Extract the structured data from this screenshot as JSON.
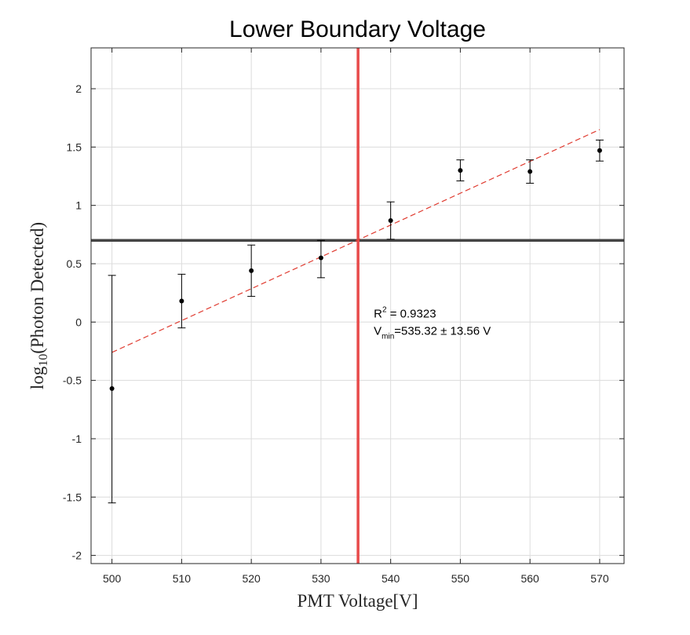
{
  "chart_data": {
    "type": "scatter",
    "title": "Lower Boundary Voltage",
    "xlabel": {
      "prefix": "PMT Voltage[V]"
    },
    "ylabel": {
      "prefix": "log",
      "subscript": "10",
      "suffix": "(Photon Detected)"
    },
    "xlim": [
      497,
      573.5
    ],
    "ylim": [
      -2.07,
      2.35
    ],
    "x_ticks": [
      500,
      510,
      520,
      530,
      540,
      550,
      560,
      570
    ],
    "x_tick_labels": [
      "500",
      "510",
      "520",
      "530",
      "540",
      "550",
      "560",
      "570"
    ],
    "y_ticks": [
      2,
      1.5,
      1,
      0.5,
      0,
      -0.5,
      -1,
      -1.5,
      -2
    ],
    "y_tick_labels": [
      "2",
      "1.5",
      "1",
      "0.5",
      "0",
      "-0.5",
      "-1",
      "-1.5",
      "-2"
    ],
    "grid": true,
    "series": [
      {
        "x": [
          500,
          510,
          520,
          530,
          540,
          550,
          560,
          570
        ],
        "y": [
          -0.57,
          0.18,
          0.44,
          0.55,
          0.87,
          1.3,
          1.29,
          1.47
        ],
        "err_low": [
          -1.55,
          -0.05,
          0.22,
          0.38,
          0.71,
          1.21,
          1.19,
          1.38
        ],
        "err_high": [
          0.4,
          0.41,
          0.66,
          0.7,
          1.03,
          1.39,
          1.39,
          1.56
        ],
        "color": "#000000"
      }
    ],
    "fit_line": {
      "x": [
        500,
        570
      ],
      "y": [
        -0.26,
        1.65
      ],
      "color": "#e03c31",
      "style": "dashed"
    },
    "hline": {
      "y": 0.7,
      "color": "#444444"
    },
    "vline": {
      "x": 535.32,
      "color": "#e84a4a"
    },
    "annotation": {
      "x": 536,
      "y": 0.02,
      "r2_prefix": "R",
      "r2_sup": "2",
      "r2_value": " = 0.9323",
      "vmin_prefix": "V",
      "vmin_sub": "min",
      "vmin_value": "=535.32 ± 13.56 V"
    }
  }
}
